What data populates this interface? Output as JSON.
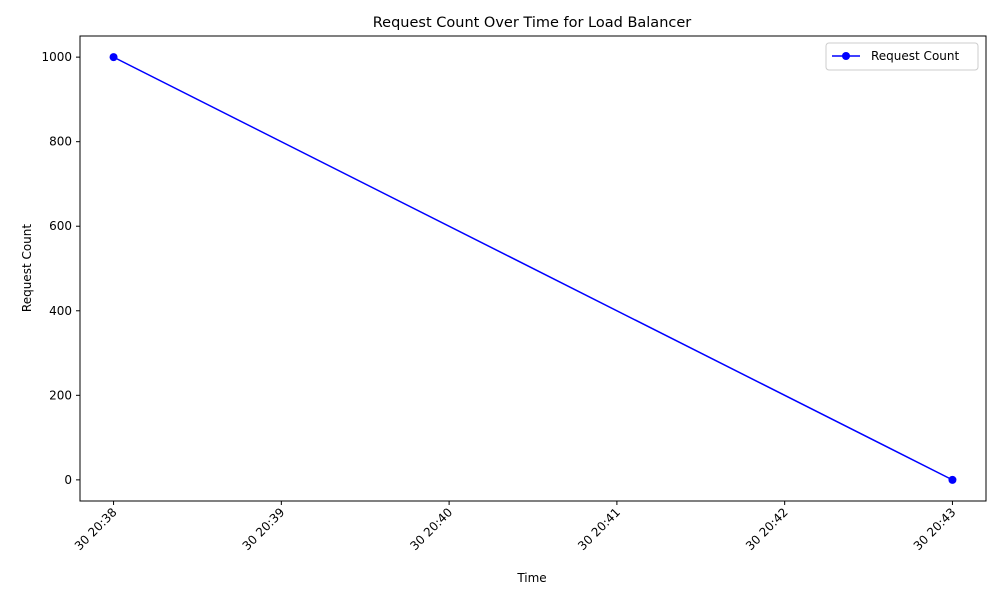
{
  "chart_data": {
    "type": "line",
    "title": "Request Count Over Time for Load Balancer",
    "xlabel": "Time",
    "ylabel": "Request Count",
    "x_ticks": [
      "30 20:38",
      "30 20:39",
      "30 20:40",
      "30 20:41",
      "30 20:42",
      "30 20:43"
    ],
    "y_ticks": [
      0,
      200,
      400,
      600,
      800,
      1000
    ],
    "ylim": [
      -50,
      1050
    ],
    "xlim": [
      "30 20:37:48",
      "30 20:43:12"
    ],
    "grid": false,
    "legend_position": "top-right",
    "series": [
      {
        "name": "Request Count",
        "color": "#0000ff",
        "marker": "circle",
        "x": [
          "30 20:38",
          "30 20:43"
        ],
        "values": [
          1000,
          0
        ]
      }
    ]
  }
}
